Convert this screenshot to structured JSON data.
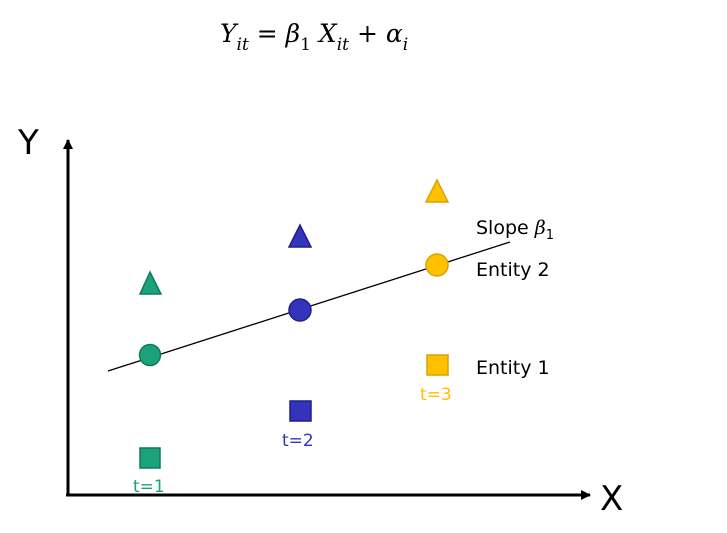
{
  "equation": {
    "y": "Y",
    "y_sub": "it",
    "equals": "=",
    "beta": "β",
    "beta_sub": "1",
    "x": "X",
    "x_sub": "it",
    "plus": "+",
    "alpha": "α",
    "alpha_sub": "i"
  },
  "axes": {
    "y_label": "Y",
    "x_label": "X"
  },
  "labels": {
    "slope_text": "Slope",
    "slope_beta": "β",
    "slope_sub": "1",
    "entity2": "Entity 2",
    "entity1": "Entity 1",
    "t1": "t=1",
    "t2": "t=2",
    "t3": "t=3"
  },
  "colors": {
    "t1": "#1aa37a",
    "t2": "#3333bb",
    "t3": "#ffc000",
    "axis": "#000000"
  },
  "legend_shapes": {
    "triangle": "entity-3-marker",
    "circle": "entity-2-marker",
    "square": "entity-1-marker"
  }
}
